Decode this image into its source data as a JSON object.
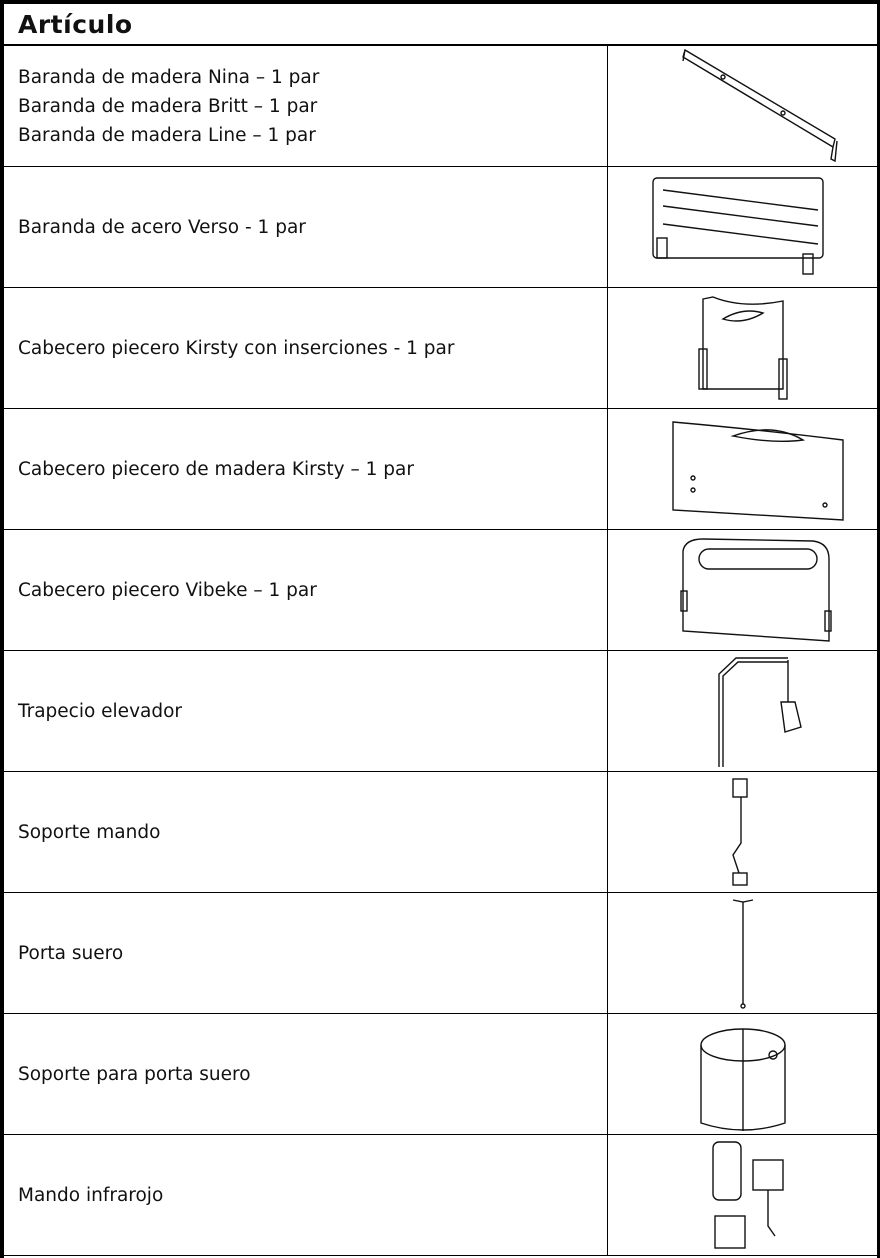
{
  "header": {
    "title": "Artículo"
  },
  "table": {
    "rows": [
      [
        "Baranda de madera Nina – 1 par",
        "Baranda de madera Britt – 1 par",
        "Baranda de madera Line – 1 par"
      ],
      [
        "Baranda de acero Verso - 1 par"
      ],
      [
        "Cabecero piecero Kirsty con inserciones - 1 par"
      ],
      [
        "Cabecero piecero de madera Kirsty – 1 par"
      ],
      [
        "Cabecero piecero Vibeke – 1 par"
      ],
      [
        "Trapecio elevador"
      ],
      [
        "Soporte mando"
      ],
      [
        "Porta suero"
      ],
      [
        "Soporte para porta suero"
      ],
      [
        "Mando infrarojo"
      ]
    ]
  }
}
